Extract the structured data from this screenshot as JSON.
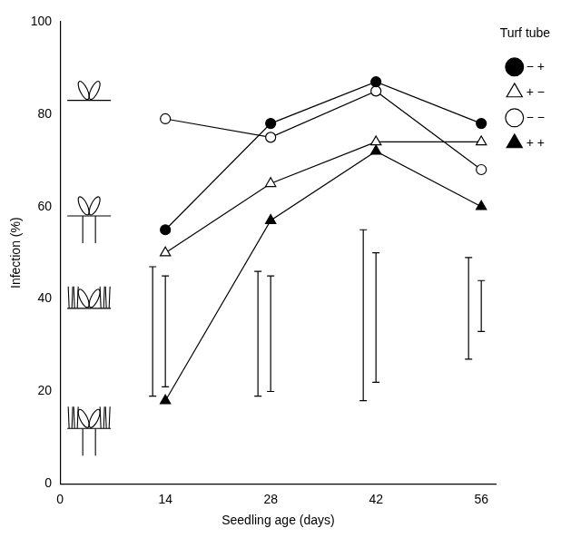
{
  "chart_data": {
    "type": "line",
    "x_label": "Seedling age (days)",
    "y_label": "Infection (%)",
    "legend_title": "Turf tube",
    "x": [
      14,
      28,
      42,
      56
    ],
    "series": [
      {
        "name": "− +",
        "color": "#000000",
        "marker": "circle",
        "line_style": "solid",
        "values": [
          55,
          78,
          87,
          78
        ]
      },
      {
        "name": "+ −",
        "color": "#000000",
        "marker": "triangle-open",
        "line_style": "solid",
        "values": [
          50,
          65,
          74,
          74
        ]
      },
      {
        "name": "− −",
        "color": "#000000",
        "marker": "circle-open",
        "line_style": "solid",
        "values": [
          79,
          75,
          85,
          68
        ]
      },
      {
        "name": "+ +",
        "color": "#000000",
        "marker": "triangle",
        "line_style": "solid",
        "values": [
          18,
          57,
          72,
          60
        ]
      }
    ],
    "error_bars": [
      {
        "x": 14,
        "low": 19,
        "high": 47
      },
      {
        "x": 14,
        "low": 21,
        "high": 45
      },
      {
        "x": 28,
        "low": 19,
        "high": 46
      },
      {
        "x": 28,
        "low": 20,
        "high": 45
      },
      {
        "x": 42,
        "low": 18,
        "high": 55
      },
      {
        "x": 42,
        "low": 22,
        "high": 50
      },
      {
        "x": 56,
        "low": 27,
        "high": 49
      },
      {
        "x": 56,
        "low": 33,
        "high": 44
      }
    ],
    "xlim": [
      0,
      58
    ],
    "xticks": [
      0,
      14,
      28,
      42,
      56
    ],
    "ylim": [
      0,
      100
    ],
    "yticks": [
      0,
      20,
      40,
      60,
      80,
      100
    ],
    "grid": false,
    "legend": "right"
  }
}
